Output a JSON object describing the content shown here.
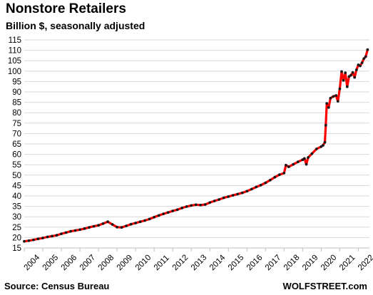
{
  "chart_data": {
    "type": "line",
    "title": "Nonstore Retailers",
    "subtitle": "Billion $, seasonally adjusted",
    "xlabel": "",
    "ylabel": "",
    "ylim": [
      15,
      115
    ],
    "xlim": [
      2004,
      2022.6
    ],
    "y_ticks": [
      15,
      20,
      25,
      30,
      35,
      40,
      45,
      50,
      55,
      60,
      65,
      70,
      75,
      80,
      85,
      90,
      95,
      100,
      105,
      110,
      115
    ],
    "x_ticks": [
      "2004",
      "2005",
      "2006",
      "2007",
      "2008",
      "2009",
      "2010",
      "2011",
      "2012",
      "2013",
      "2014",
      "2015",
      "2016",
      "2017",
      "2018",
      "2019",
      "2020",
      "2021",
      "2022"
    ],
    "grid": "horizontal",
    "legend": "none",
    "series": [
      {
        "line_color": "#ff0000",
        "marker_color": "#1a1a1a",
        "points": [
          [
            2004.0,
            18.2
          ],
          [
            2004.25,
            18.5
          ],
          [
            2004.5,
            18.9
          ],
          [
            2004.75,
            19.4
          ],
          [
            2005.0,
            19.8
          ],
          [
            2005.25,
            20.3
          ],
          [
            2005.5,
            20.7
          ],
          [
            2005.75,
            21.1
          ],
          [
            2006.0,
            21.8
          ],
          [
            2006.25,
            22.4
          ],
          [
            2006.5,
            23.0
          ],
          [
            2006.75,
            23.4
          ],
          [
            2007.0,
            23.8
          ],
          [
            2007.25,
            24.3
          ],
          [
            2007.5,
            24.9
          ],
          [
            2007.75,
            25.4
          ],
          [
            2008.0,
            25.9
          ],
          [
            2008.25,
            26.7
          ],
          [
            2008.5,
            27.6
          ],
          [
            2008.75,
            26.3
          ],
          [
            2009.0,
            25.0
          ],
          [
            2009.25,
            24.9
          ],
          [
            2009.5,
            25.6
          ],
          [
            2009.75,
            26.4
          ],
          [
            2010.0,
            27.0
          ],
          [
            2010.25,
            27.6
          ],
          [
            2010.5,
            28.2
          ],
          [
            2010.75,
            28.9
          ],
          [
            2011.0,
            29.8
          ],
          [
            2011.25,
            30.6
          ],
          [
            2011.5,
            31.4
          ],
          [
            2011.75,
            32.1
          ],
          [
            2012.0,
            32.8
          ],
          [
            2012.25,
            33.4
          ],
          [
            2012.5,
            34.2
          ],
          [
            2012.75,
            34.9
          ],
          [
            2013.0,
            35.4
          ],
          [
            2013.25,
            35.8
          ],
          [
            2013.5,
            35.6
          ],
          [
            2013.75,
            35.9
          ],
          [
            2014.0,
            36.8
          ],
          [
            2014.25,
            37.6
          ],
          [
            2014.5,
            38.3
          ],
          [
            2014.75,
            39.1
          ],
          [
            2015.0,
            39.7
          ],
          [
            2015.25,
            40.3
          ],
          [
            2015.5,
            40.9
          ],
          [
            2015.75,
            41.5
          ],
          [
            2016.0,
            42.3
          ],
          [
            2016.25,
            43.3
          ],
          [
            2016.5,
            44.3
          ],
          [
            2016.75,
            45.2
          ],
          [
            2017.0,
            46.3
          ],
          [
            2017.25,
            47.6
          ],
          [
            2017.5,
            49.0
          ],
          [
            2017.75,
            50.2
          ],
          [
            2018.0,
            51.0
          ],
          [
            2018.1,
            54.8
          ],
          [
            2018.25,
            54.0
          ],
          [
            2018.5,
            55.2
          ],
          [
            2018.75,
            56.4
          ],
          [
            2019.0,
            57.4
          ],
          [
            2019.1,
            58.0
          ],
          [
            2019.2,
            55.2
          ],
          [
            2019.3,
            58.5
          ],
          [
            2019.5,
            60.3
          ],
          [
            2019.75,
            62.6
          ],
          [
            2020.0,
            63.7
          ],
          [
            2020.1,
            64.3
          ],
          [
            2020.2,
            65.8
          ],
          [
            2020.25,
            74.0
          ],
          [
            2020.3,
            84.5
          ],
          [
            2020.4,
            82.5
          ],
          [
            2020.5,
            87.0
          ],
          [
            2020.65,
            87.8
          ],
          [
            2020.8,
            88.3
          ],
          [
            2020.9,
            85.5
          ],
          [
            2021.0,
            91.5
          ],
          [
            2021.1,
            99.8
          ],
          [
            2021.2,
            95.5
          ],
          [
            2021.3,
            99.2
          ],
          [
            2021.4,
            92.5
          ],
          [
            2021.5,
            97.4
          ],
          [
            2021.6,
            98.0
          ],
          [
            2021.7,
            99.3
          ],
          [
            2021.8,
            97.0
          ],
          [
            2021.9,
            100.6
          ],
          [
            2022.0,
            103.0
          ],
          [
            2022.1,
            102.5
          ],
          [
            2022.2,
            104.0
          ],
          [
            2022.3,
            106.0
          ],
          [
            2022.4,
            107.0
          ],
          [
            2022.5,
            110.3
          ]
        ]
      }
    ]
  },
  "source": "Source: Census Bureau",
  "brand": "WOLFSTREET.com"
}
